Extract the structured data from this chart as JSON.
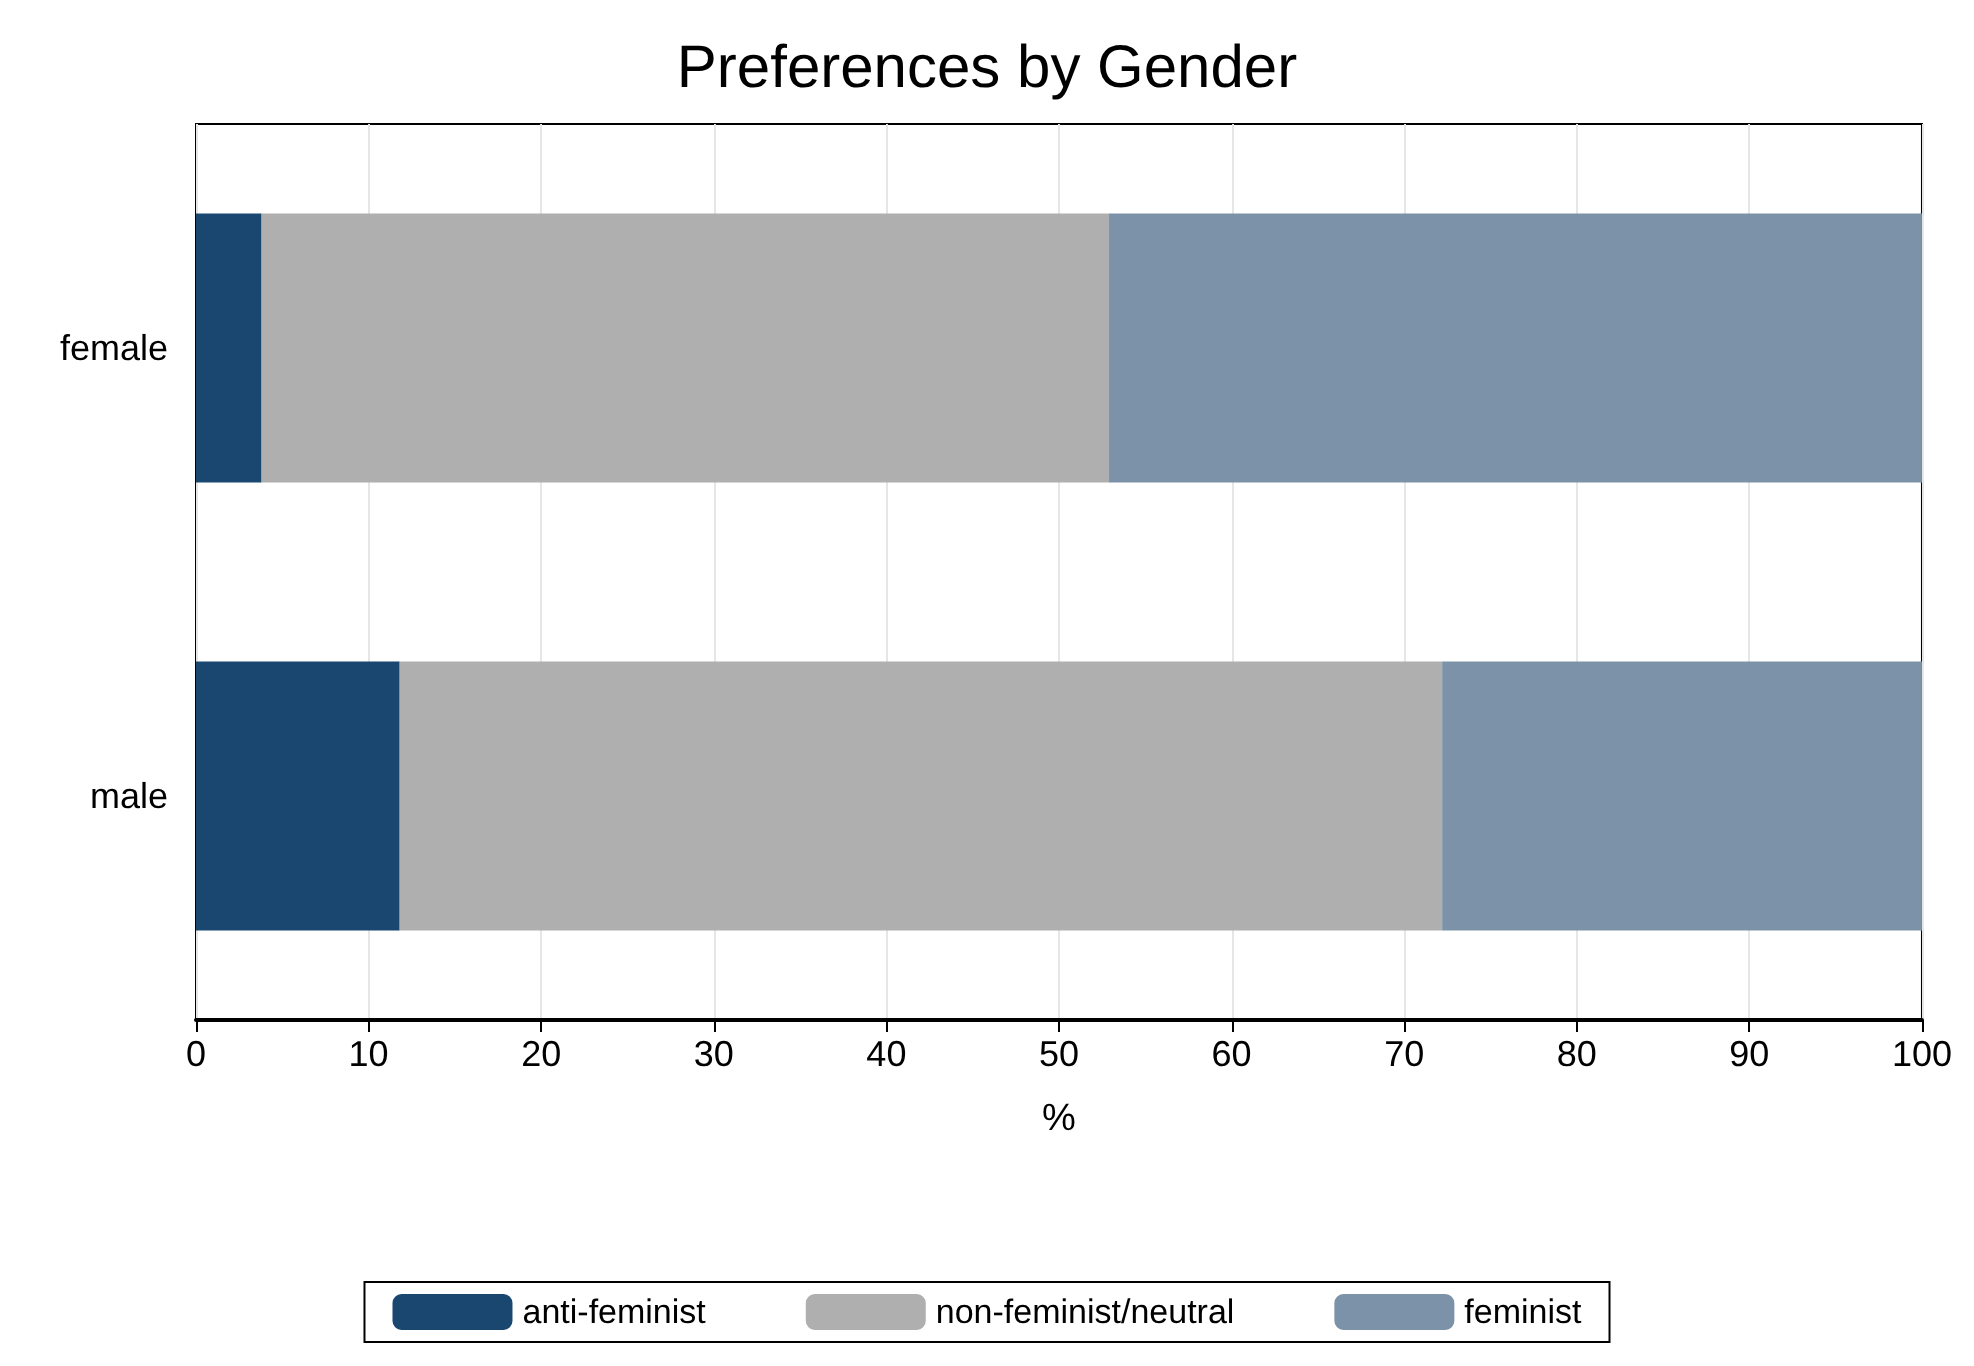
{
  "chart_data": {
    "type": "bar",
    "title": "Preferences by Gender",
    "xlabel": "%",
    "orientation": "horizontal",
    "stacked": true,
    "categories": [
      "female",
      "male"
    ],
    "series": [
      {
        "name": "anti-feminist",
        "color": "#1a476f",
        "values": [
          3.8,
          11.8
        ]
      },
      {
        "name": "non-feminist/neutral",
        "color": "#afafaf",
        "values": [
          49.1,
          60.4
        ]
      },
      {
        "name": "feminist",
        "color": "#7b92a8",
        "values": [
          47.1,
          27.8
        ]
      }
    ],
    "xlim": [
      0,
      100
    ],
    "xticks": [
      0,
      10,
      20,
      30,
      40,
      50,
      60,
      70,
      80,
      90,
      100
    ],
    "grid": "x",
    "legend": "bottom"
  }
}
